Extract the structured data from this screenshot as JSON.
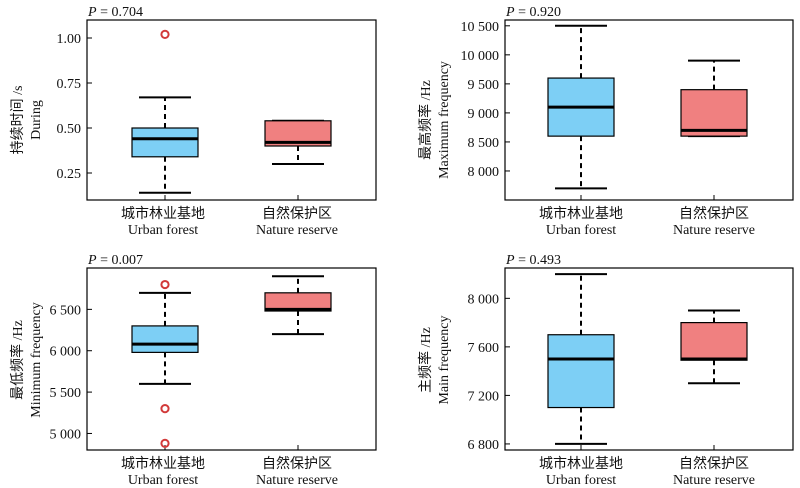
{
  "chart_data": [
    {
      "type": "box",
      "p_label": "P",
      "p_value": "= 0.704",
      "ylabel_cn": "持续时间 /s",
      "ylabel_en": "During",
      "ylim": [
        0.1,
        1.1
      ],
      "yticks": [
        0.25,
        0.5,
        0.75,
        1.0
      ],
      "ytick_labels": [
        "0.25",
        "0.50",
        "0.75",
        "1.00"
      ],
      "categories": [
        {
          "cn": "城市林业基地",
          "en": "Urban forest"
        },
        {
          "cn": "自然保护区",
          "en": "Nature reserve"
        }
      ],
      "boxes": [
        {
          "whisker_low": 0.14,
          "q1": 0.34,
          "median": 0.44,
          "q3": 0.5,
          "whisker_high": 0.67,
          "outliers": [
            1.02
          ],
          "color": "#7dcff5"
        },
        {
          "whisker_low": 0.3,
          "q1": 0.4,
          "median": 0.42,
          "q3": 0.54,
          "whisker_high": 0.54,
          "outliers": [],
          "color": "#f08080"
        }
      ]
    },
    {
      "type": "box",
      "p_label": "P",
      "p_value": "= 0.920",
      "ylabel_cn": "最高频率 /Hz",
      "ylabel_en": "Maximum frequency",
      "ylim": [
        7500,
        10600
      ],
      "yticks": [
        8000,
        8500,
        9000,
        9500,
        10000,
        10500
      ],
      "ytick_labels": [
        "8 000",
        "8 500",
        "9 000",
        "9 500",
        "10 000",
        "10 500"
      ],
      "categories": [
        {
          "cn": "城市林业基地",
          "en": "Urban forest"
        },
        {
          "cn": "自然保护区",
          "en": "Nature reserve"
        }
      ],
      "boxes": [
        {
          "whisker_low": 7700,
          "q1": 8600,
          "median": 9100,
          "q3": 9600,
          "whisker_high": 10500,
          "outliers": [],
          "color": "#7dcff5"
        },
        {
          "whisker_low": 8600,
          "q1": 8600,
          "median": 8700,
          "q3": 9400,
          "whisker_high": 9900,
          "outliers": [],
          "color": "#f08080"
        }
      ]
    },
    {
      "type": "box",
      "p_label": "P",
      "p_value": "= 0.007",
      "ylabel_cn": "最低频率 /Hz",
      "ylabel_en": "Minimum frequency",
      "ylim": [
        4800,
        7000
      ],
      "yticks": [
        5000,
        5500,
        6000,
        6500
      ],
      "ytick_labels": [
        "5 000",
        "5 500",
        "6 000",
        "6 500"
      ],
      "categories": [
        {
          "cn": "城市林业基地",
          "en": "Urban forest"
        },
        {
          "cn": "自然保护区",
          "en": "Nature reserve"
        }
      ],
      "boxes": [
        {
          "whisker_low": 5600,
          "q1": 5980,
          "median": 6080,
          "q3": 6300,
          "whisker_high": 6700,
          "outliers": [
            6800,
            5300,
            4880
          ],
          "color": "#7dcff5"
        },
        {
          "whisker_low": 6200,
          "q1": 6480,
          "median": 6500,
          "q3": 6700,
          "whisker_high": 6900,
          "outliers": [],
          "color": "#f08080"
        }
      ]
    },
    {
      "type": "box",
      "p_label": "P",
      "p_value": "= 0.493",
      "ylabel_cn": "主频率 /Hz",
      "ylabel_en": "Main frequency",
      "ylim": [
        6750,
        8250
      ],
      "yticks": [
        6800,
        7200,
        7600,
        8000
      ],
      "ytick_labels": [
        "6 800",
        "7 200",
        "7 600",
        "8 000"
      ],
      "categories": [
        {
          "cn": "城市林业基地",
          "en": "Urban forest"
        },
        {
          "cn": "自然保护区",
          "en": "Nature reserve"
        }
      ],
      "boxes": [
        {
          "whisker_low": 6800,
          "q1": 7100,
          "median": 7500,
          "q3": 7700,
          "whisker_high": 8200,
          "outliers": [],
          "color": "#7dcff5"
        },
        {
          "whisker_low": 7300,
          "q1": 7490,
          "median": 7500,
          "q3": 7800,
          "whisker_high": 7900,
          "outliers": [],
          "color": "#f08080"
        }
      ]
    }
  ]
}
